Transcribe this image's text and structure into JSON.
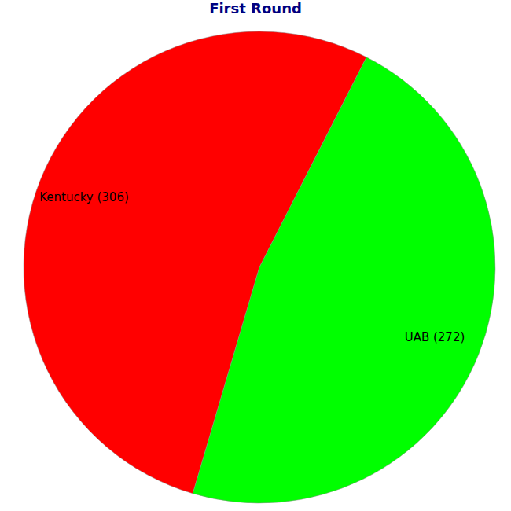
{
  "chart_data": {
    "type": "pie",
    "title": "First Round",
    "categories": [
      "Kentucky",
      "UAB"
    ],
    "values": [
      306,
      272
    ],
    "value_labels": [
      "Kentucky (306)",
      "UAB (272)"
    ],
    "data_labels": true,
    "colors": [
      "#ff0000",
      "#00ff00"
    ]
  }
}
